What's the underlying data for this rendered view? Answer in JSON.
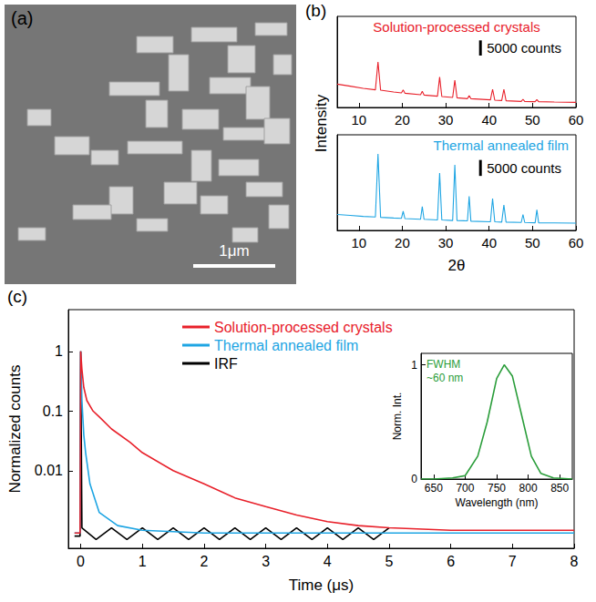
{
  "image_panel": {
    "label": "(a)",
    "scale_bar": "1μm"
  },
  "chart_data": [
    {
      "type": "line",
      "annotations": [
        "(b)"
      ],
      "ylabel": "Intensity",
      "x": [
        5,
        8,
        11,
        13.8,
        14.4,
        15,
        18,
        19.8,
        20.2,
        20.6,
        24.2,
        24.6,
        25,
        28.1,
        28.6,
        29.1,
        31.6,
        32.1,
        32.6,
        35,
        35.4,
        35.8,
        40.3,
        40.8,
        41.3,
        42.9,
        43.4,
        43.9,
        47.4,
        47.8,
        48.2,
        50.6,
        51,
        51.4,
        55,
        60
      ],
      "series": [
        {
          "name": "Solution-processed crystals",
          "color": "#e8202a",
          "values": [
            7700,
            7000,
            6300,
            5800,
            15000,
            5700,
            5100,
            4800,
            5800,
            4700,
            4200,
            5300,
            4100,
            3700,
            10000,
            3600,
            3300,
            9000,
            3200,
            2900,
            3900,
            2900,
            2500,
            6000,
            2400,
            2300,
            6000,
            2200,
            2000,
            2700,
            2000,
            1900,
            2600,
            1900,
            1800,
            1700
          ]
        }
      ],
      "xlim": [
        5,
        60
      ],
      "xticks": [
        10,
        20,
        30,
        40,
        50,
        60
      ],
      "ylim": [
        0,
        30000
      ],
      "tick_labels": "x",
      "grid": false,
      "legend": "top",
      "scale_bar": {
        "value": 5000,
        "label": "5000 counts"
      }
    },
    {
      "type": "line",
      "xlabel": "2θ",
      "x": [
        5,
        8,
        11,
        13.8,
        14.4,
        15,
        18,
        19.8,
        20.2,
        20.6,
        24.2,
        24.6,
        25,
        28.1,
        28.6,
        29.1,
        31.6,
        32.1,
        32.6,
        35,
        35.4,
        35.8,
        40.3,
        40.8,
        41.3,
        42.9,
        43.4,
        43.9,
        47.4,
        47.8,
        48.2,
        50.6,
        51,
        51.4,
        55,
        60
      ],
      "series": [
        {
          "name": "Thermal annealed film",
          "color": "#1ea5e3",
          "values": [
            5000,
            4700,
            4400,
            4200,
            24000,
            4100,
            3900,
            3800,
            6000,
            3700,
            3500,
            7500,
            3500,
            3300,
            18000,
            3300,
            3100,
            20600,
            3100,
            3000,
            10700,
            2900,
            2700,
            10000,
            2700,
            2600,
            8000,
            2600,
            2500,
            5000,
            2500,
            2400,
            6500,
            2400,
            2350,
            2300
          ]
        }
      ],
      "xlim": [
        5,
        60
      ],
      "xticks": [
        10,
        20,
        30,
        40,
        50,
        60
      ],
      "ylim": [
        0,
        30000
      ],
      "tick_labels": "x",
      "grid": false,
      "legend": "top-right",
      "scale_bar": {
        "value": 5000,
        "label": "5000 counts"
      }
    },
    {
      "type": "line",
      "annotations": [
        "(c)"
      ],
      "xlabel": "Time (μs)",
      "ylabel": "Normalized counts",
      "series": [
        {
          "name": "Solution-processed crystals",
          "color": "#e8202a",
          "x": [
            -0.1,
            -0.01,
            0,
            0.02,
            0.05,
            0.1,
            0.2,
            0.3,
            0.5,
            0.8,
            1,
            1.5,
            2,
            2.5,
            3,
            3.5,
            4,
            4.5,
            5,
            6,
            7,
            8
          ],
          "values": [
            0.0009,
            0.0009,
            1,
            0.5,
            0.25,
            0.15,
            0.1,
            0.08,
            0.05,
            0.03,
            0.02,
            0.01,
            0.006,
            0.0035,
            0.0025,
            0.0018,
            0.0014,
            0.0012,
            0.0011,
            0.001,
            0.001,
            0.001
          ]
        },
        {
          "name": "Thermal annealed film",
          "color": "#1ea5e3",
          "x": [
            -0.1,
            -0.01,
            0,
            0.02,
            0.05,
            0.08,
            0.15,
            0.3,
            0.6,
            1,
            2,
            4,
            6,
            8
          ],
          "values": [
            0.0009,
            0.0009,
            1,
            0.15,
            0.04,
            0.02,
            0.006,
            0.002,
            0.0012,
            0.001,
            0.0009,
            0.0009,
            0.0009,
            0.0009
          ]
        },
        {
          "name": "IRF",
          "color": "#000000",
          "x": [
            -0.1,
            -0.01,
            0,
            0.02,
            0.25,
            0.5,
            0.75,
            1,
            1.25,
            1.5,
            1.75,
            2,
            2.25,
            2.5,
            2.75,
            3,
            3.25,
            3.5,
            3.75,
            4,
            4.25,
            4.5,
            4.75,
            5
          ],
          "values": [
            0.0008,
            0.0008,
            1,
            0.0011,
            0.0007,
            0.0011,
            0.0007,
            0.0011,
            0.0007,
            0.0011,
            0.0007,
            0.0011,
            0.0007,
            0.0011,
            0.0007,
            0.0011,
            0.0007,
            0.0011,
            0.0007,
            0.0011,
            0.0007,
            0.0011,
            0.0007,
            0.0011
          ]
        }
      ],
      "xlim": [
        -0.2,
        8
      ],
      "xticks": [
        0,
        1,
        2,
        3,
        4,
        5,
        6,
        7,
        8
      ],
      "ylim": [
        0.0005,
        5
      ],
      "yticks": [
        0.01,
        0.1,
        1
      ],
      "log": "y",
      "grid": false,
      "legend": "top"
    },
    {
      "type": "line",
      "annotations": [
        "FWHM",
        "~60 nm"
      ],
      "xlabel": "Wavelength (nm)",
      "ylabel": "Norm. Int.",
      "x": [
        630,
        650,
        680,
        700,
        720,
        735,
        750,
        762,
        775,
        790,
        805,
        820,
        840,
        870
      ],
      "values": [
        0,
        0,
        0.01,
        0.03,
        0.2,
        0.5,
        0.88,
        1,
        0.9,
        0.55,
        0.2,
        0.05,
        0.01,
        0
      ],
      "color": "#2a9d3a",
      "xlim": [
        630,
        870
      ],
      "xticks": [
        650,
        700,
        750,
        800,
        850
      ],
      "ylim": [
        0,
        1.1
      ],
      "yticks": [
        0,
        1
      ],
      "grid": false
    }
  ]
}
